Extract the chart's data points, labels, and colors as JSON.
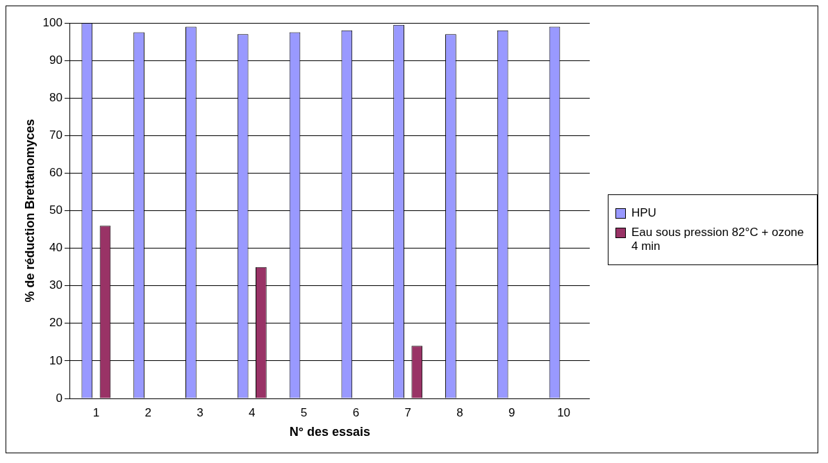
{
  "chart_data": {
    "type": "bar",
    "xlabel": "N° des essais",
    "ylabel": "% de réduction Brettanomyces",
    "categories": [
      "1",
      "2",
      "3",
      "4",
      "5",
      "6",
      "7",
      "8",
      "9",
      "10"
    ],
    "series": [
      {
        "name": "HPU",
        "color": "#9999ff",
        "values": [
          100,
          97.5,
          99,
          97,
          97.5,
          98,
          99.5,
          97,
          98,
          99
        ]
      },
      {
        "name": "Eau sous pression 82°C + ozone 4 min",
        "color": "#993366",
        "values": [
          46,
          0,
          0,
          35,
          0,
          0,
          14,
          0,
          0,
          0
        ]
      }
    ],
    "ylim": [
      0,
      100
    ],
    "yticks": [
      0,
      10,
      20,
      30,
      40,
      50,
      60,
      70,
      80,
      90,
      100
    ],
    "grid": "y",
    "legend": "right"
  }
}
